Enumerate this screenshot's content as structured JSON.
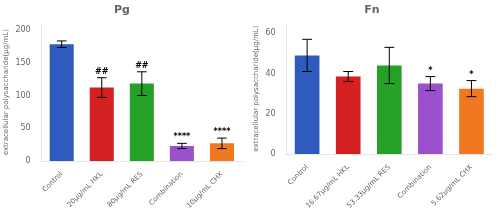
{
  "chart_data": [
    {
      "type": "bar",
      "title": "Pg",
      "categories": [
        "Control",
        "20μg/mL HKL",
        "80μg/mL RES",
        "Combination",
        "10μg/mL CHX"
      ],
      "values": [
        178,
        112,
        118,
        23,
        27
      ],
      "errors": [
        5,
        15,
        18,
        4,
        8
      ],
      "colors": [
        "#2e5bbd",
        "#d42020",
        "#25a128",
        "#9b50cc",
        "#f07820"
      ],
      "ylim": [
        0,
        210
      ],
      "yticks": [
        0,
        50,
        100,
        150,
        200
      ],
      "ylabel": "extracellular polysaccharide(μg/mL)",
      "annotations": [
        null,
        "##",
        "##",
        "****",
        "****"
      ],
      "grid": false
    },
    {
      "type": "bar",
      "title": "Fn",
      "categories": [
        "Control",
        "16.67μg/mL HKL",
        "53.33μg/mL RES",
        "Combination",
        "5.62μg/mL CHX"
      ],
      "values": [
        49,
        38.5,
        44,
        35,
        32.5
      ],
      "errors": [
        8,
        2.5,
        9,
        3.5,
        4
      ],
      "colors": [
        "#2e5bbd",
        "#d42020",
        "#25a128",
        "#9b50cc",
        "#f07820"
      ],
      "ylim": [
        0,
        65
      ],
      "yticks": [
        0,
        20,
        40,
        60
      ],
      "ylabel": "extracellular polysaccharide(μg/mL)",
      "annotations": [
        null,
        null,
        null,
        "*",
        "*"
      ],
      "grid": false
    }
  ]
}
